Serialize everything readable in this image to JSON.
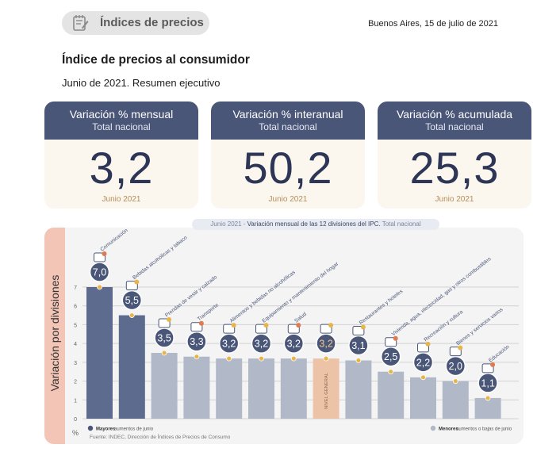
{
  "header": {
    "badge_label": "Índices de precios",
    "date": "Buenos Aires, 15 de julio de 2021"
  },
  "report": {
    "title": "Índice de precios al consumidor",
    "subtitle": "Junio de 2021. Resumen ejecutivo"
  },
  "cards": [
    {
      "title": "Variación % mensual",
      "sub": "Total nacional",
      "value": "3,2",
      "period": "Junio 2021"
    },
    {
      "title": "Variación % interanual",
      "sub": "Total nacional",
      "value": "50,2",
      "period": "Junio 2021"
    },
    {
      "title": "Variación % acumulada",
      "sub": "Total nacional",
      "value": "25,3",
      "period": "Junio 2021"
    }
  ],
  "chart_caption": {
    "period": "Junio 2021",
    "sep": " - ",
    "desc": "Variación mensual de las 12 divisiones del IPC.",
    "scope": " Total nacional"
  },
  "colors": {
    "navy": "#4a5678",
    "bar_high": "#5c6b8e",
    "bar_low": "#b1b9c8",
    "bar_general": "#ecc3a7",
    "gold": "#e7b54a",
    "yband": "#f2c5b6"
  },
  "chart_data": {
    "type": "bar",
    "ylabel": "Variación por divisiones",
    "yunit": "%",
    "ylim": [
      0,
      7
    ],
    "yticks": [
      0,
      1,
      2,
      3,
      4,
      5,
      6,
      7
    ],
    "grid": true,
    "categories": [
      "Comunicación",
      "Bebidas alcohólicas y tabaco",
      "Prendas de vestir y calzado",
      "Transporte",
      "Alimentos y bebidas no alcohólicas",
      "Equipamiento y mantenimiento del hogar",
      "Salud",
      "NIVEL GENERAL",
      "Restaurantes y hoteles",
      "Vivienda, agua, electricidad, gas y otros combustibles",
      "Recreación y cultura",
      "Bienes y servicios varios",
      "Educación"
    ],
    "values": [
      7.0,
      5.5,
      3.5,
      3.3,
      3.2,
      3.2,
      3.2,
      3.2,
      3.1,
      2.5,
      2.2,
      2.0,
      1.1
    ],
    "value_labels": [
      "7,0",
      "5,5",
      "3,5",
      "3,3",
      "3,2",
      "3,2",
      "3,2",
      "3,2",
      "3,1",
      "2,5",
      "2,2",
      "2,0",
      "1,1"
    ],
    "group": [
      "high",
      "high",
      "low",
      "low",
      "low",
      "low",
      "low",
      "general",
      "low",
      "low",
      "low",
      "low",
      "low"
    ],
    "icons": [
      "phone-icon",
      "bottle-icon",
      "clothing-icon",
      "car-icon",
      "fruit-icon",
      "house-icon",
      "health-cross-icon",
      "basket-icon",
      "restaurant-icon",
      "bulb-icon",
      "mask-icon",
      "scissors-icon",
      "books-icon"
    ],
    "legend": [
      {
        "label": "Mayores",
        "detail": " aumentos de junio",
        "color": "#4a5678"
      },
      {
        "label": "Menores",
        "detail": " aumentos o bajas de junio",
        "color": "#b1b9c8"
      }
    ],
    "source": "Fuente: INDEC, Dirección de Índices de Precios de Consumo"
  }
}
